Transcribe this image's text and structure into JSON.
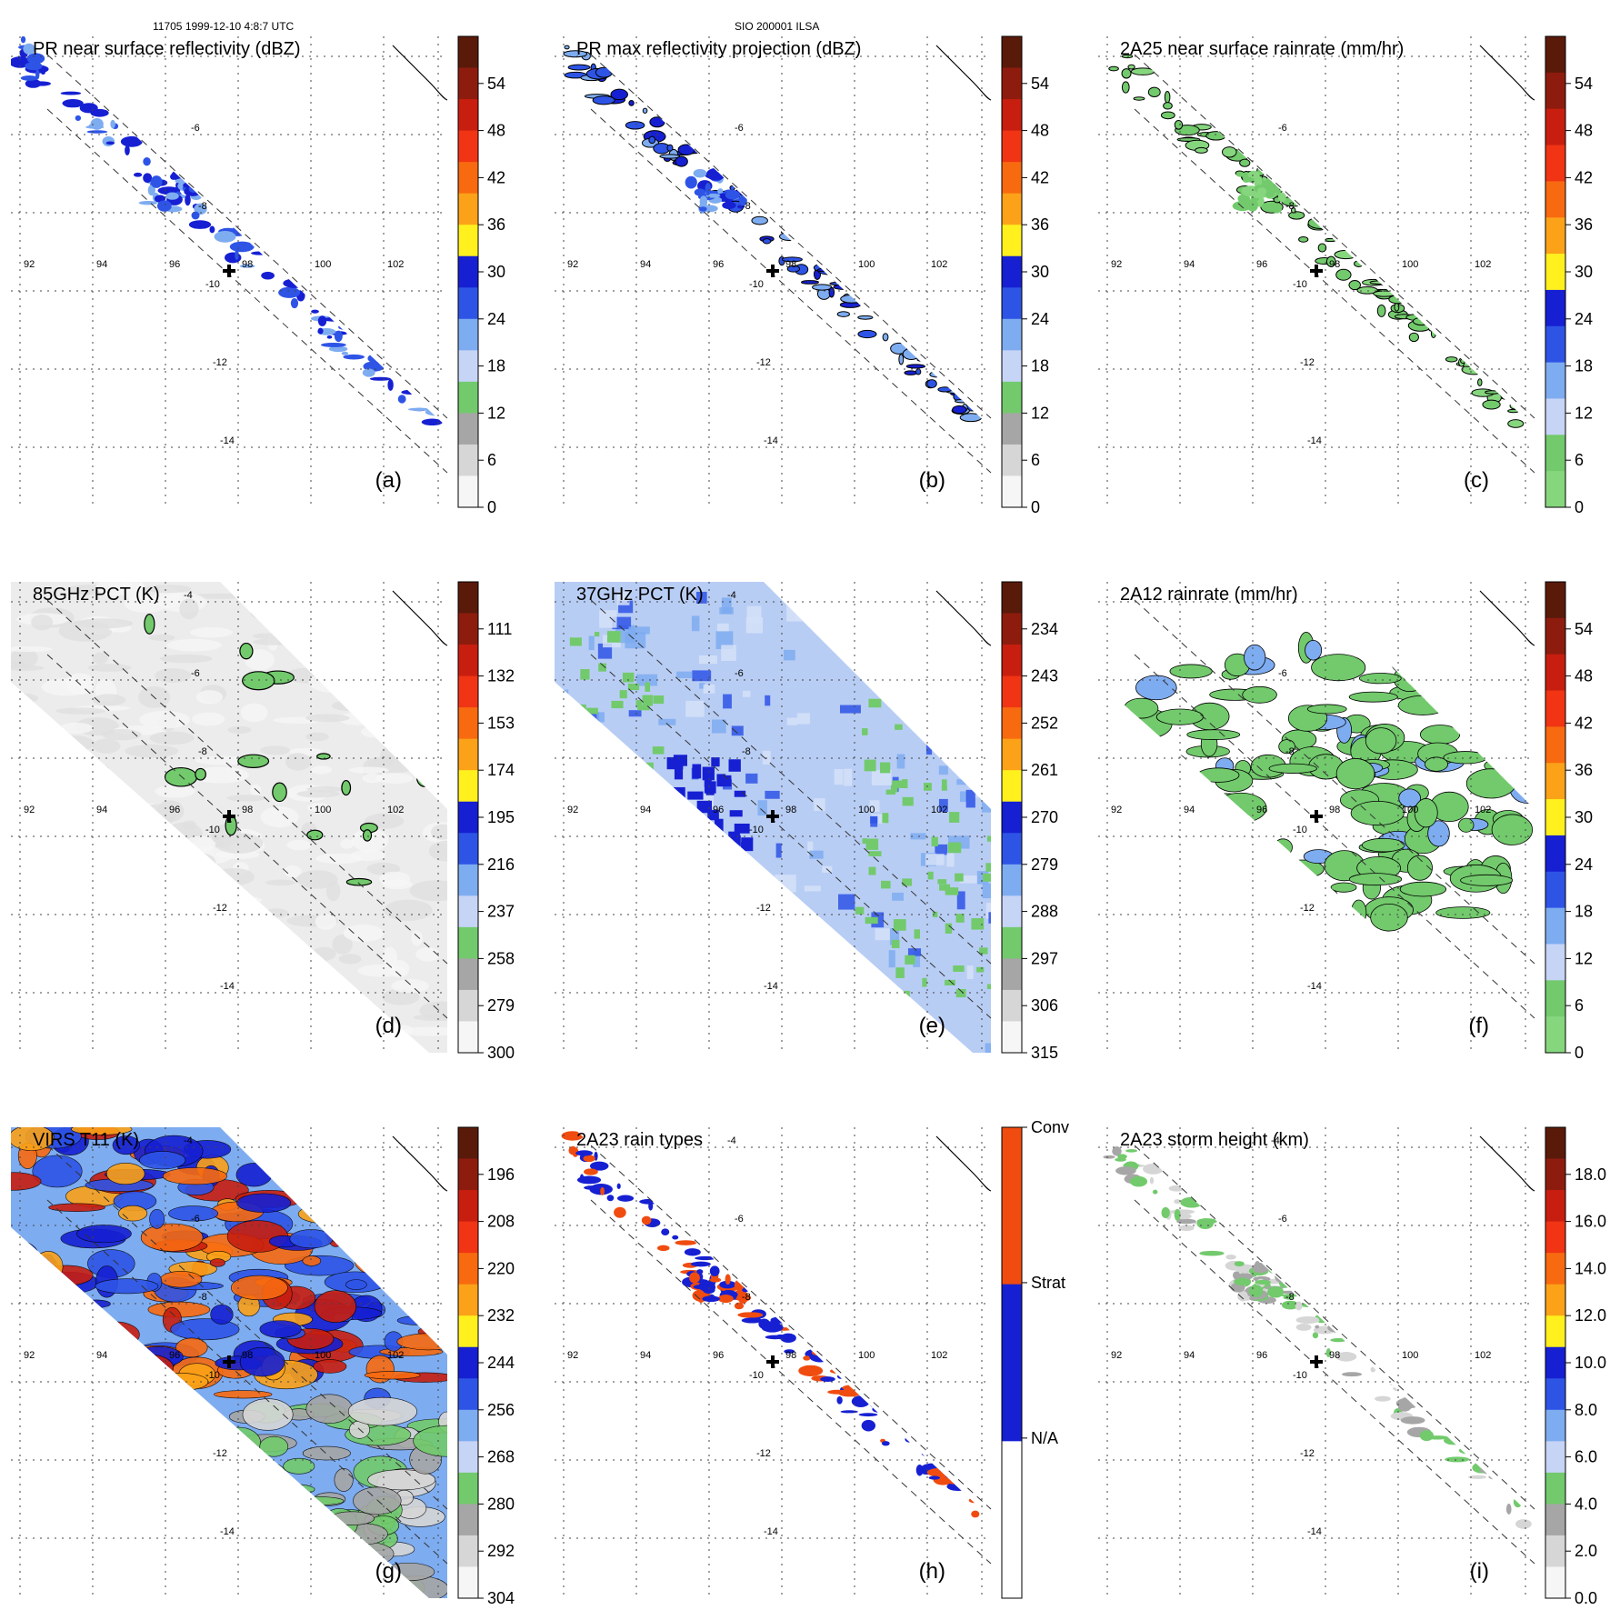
{
  "header": {
    "left": "11705 1999-12-10 4:8:7 UTC",
    "center": "SIO 200001 ILSA"
  },
  "map": {
    "lon_labels": [
      "92",
      "94",
      "96",
      "98",
      "100",
      "102"
    ],
    "storm_center_icon": "plus-marker-icon",
    "coastline_color": "#000000",
    "gridline_style": "dotted"
  },
  "panels": [
    {
      "id": "a",
      "letter": "(a)",
      "title": "PR near surface reflectivity (dBZ)",
      "lat_labels": [
        "-6",
        "-8",
        "-10",
        "-12",
        "-14"
      ],
      "colorbar": {
        "ticks": [
          "54",
          "48",
          "42",
          "36",
          "30",
          "24",
          "18",
          "12",
          "6",
          "0"
        ],
        "colors": [
          "#5a1a0a",
          "#8e1c0e",
          "#c81e10",
          "#f03414",
          "#f86a10",
          "#fba218",
          "#fff01e",
          "#1620d2",
          "#2e54e6",
          "#7eacf0",
          "#c6d4f6",
          "#72ca6c",
          "#a6a6a6",
          "#d6d6d6",
          "#f6f6f6"
        ]
      },
      "mask": "swath-narrow",
      "fill": "sparse-pr"
    },
    {
      "id": "b",
      "letter": "(b)",
      "title": "PR max reflectivity projection (dBZ)",
      "lat_labels": [
        "-6",
        "-8",
        "-10",
        "-12",
        "-14"
      ],
      "colorbar": {
        "ticks": [
          "54",
          "48",
          "42",
          "36",
          "30",
          "24",
          "18",
          "12",
          "6",
          "0"
        ],
        "colors": [
          "#5a1a0a",
          "#8e1c0e",
          "#c81e10",
          "#f03414",
          "#f86a10",
          "#fba218",
          "#fff01e",
          "#1620d2",
          "#2e54e6",
          "#7eacf0",
          "#c6d4f6",
          "#72ca6c",
          "#a6a6a6",
          "#d6d6d6",
          "#f6f6f6"
        ]
      },
      "mask": "swath-narrow",
      "fill": "sparse-pr-contour"
    },
    {
      "id": "c",
      "letter": "(c)",
      "title": "2A25 near surface rainrate (mm/hr)",
      "lat_labels": [
        "-6",
        "-8",
        "-10",
        "-12",
        "-14"
      ],
      "colorbar": {
        "ticks": [
          "54",
          "48",
          "42",
          "36",
          "30",
          "24",
          "18",
          "12",
          "6",
          "0"
        ],
        "colors": [
          "#5a1a0a",
          "#8e1c0e",
          "#c81e10",
          "#f03414",
          "#f86a10",
          "#fba218",
          "#fff01e",
          "#1620d2",
          "#2e54e6",
          "#7eacf0",
          "#c6d4f6",
          "#72ca6c",
          "#86d67e"
        ]
      },
      "mask": "swath-narrow",
      "fill": "sparse-rain"
    },
    {
      "id": "d",
      "letter": "(d)",
      "title": "85GHz PCT (K)",
      "lat_labels": [
        "-4",
        "-6",
        "-8",
        "-10",
        "-12",
        "-14"
      ],
      "colorbar": {
        "ticks": [
          "111",
          "132",
          "153",
          "174",
          "195",
          "216",
          "237",
          "258",
          "279",
          "300"
        ],
        "colors": [
          "#5a1a0a",
          "#8e1c0e",
          "#c81e10",
          "#f03414",
          "#f86a10",
          "#fba218",
          "#fff01e",
          "#1620d2",
          "#2e54e6",
          "#7eacf0",
          "#c6d4f6",
          "#72ca6c",
          "#a6a6a6",
          "#d6d6d6",
          "#f6f6f6"
        ]
      },
      "mask": "swath-wide",
      "fill": "gray-pct"
    },
    {
      "id": "e",
      "letter": "(e)",
      "title": "37GHz PCT (K)",
      "lat_labels": [
        "-4",
        "-6",
        "-8",
        "-10",
        "-12",
        "-14"
      ],
      "colorbar": {
        "ticks": [
          "234",
          "243",
          "252",
          "261",
          "270",
          "279",
          "288",
          "297",
          "306",
          "315"
        ],
        "colors": [
          "#5a1a0a",
          "#8e1c0e",
          "#c81e10",
          "#f03414",
          "#f86a10",
          "#fba218",
          "#fff01e",
          "#1620d2",
          "#2e54e6",
          "#7eacf0",
          "#c6d4f6",
          "#72ca6c",
          "#a6a6a6",
          "#d6d6d6",
          "#f6f6f6"
        ]
      },
      "mask": "swath-wide",
      "fill": "blue-pct"
    },
    {
      "id": "f",
      "letter": "(f)",
      "title": "2A12 rainrate (mm/hr)",
      "lat_labels": [
        "-6",
        "-8",
        "-10",
        "-12",
        "-14"
      ],
      "colorbar": {
        "ticks": [
          "54",
          "48",
          "42",
          "36",
          "30",
          "24",
          "18",
          "12",
          "6",
          "0"
        ],
        "colors": [
          "#5a1a0a",
          "#8e1c0e",
          "#c81e10",
          "#f03414",
          "#f86a10",
          "#fba218",
          "#fff01e",
          "#1620d2",
          "#2e54e6",
          "#7eacf0",
          "#c6d4f6",
          "#72ca6c",
          "#86d67e"
        ]
      },
      "mask": "swath-wide",
      "fill": "rain-spiral"
    },
    {
      "id": "g",
      "letter": "(g)",
      "title": "VIRS T11 (K)",
      "lat_labels": [
        "-4",
        "-6",
        "-8",
        "-10",
        "-12",
        "-14"
      ],
      "colorbar": {
        "ticks": [
          "196",
          "208",
          "220",
          "232",
          "244",
          "256",
          "268",
          "280",
          "292",
          "304"
        ],
        "colors": [
          "#5a1a0a",
          "#8e1c0e",
          "#c81e10",
          "#f03414",
          "#f86a10",
          "#fba218",
          "#fff01e",
          "#1620d2",
          "#2e54e6",
          "#7eacf0",
          "#c6d4f6",
          "#72ca6c",
          "#a6a6a6",
          "#d6d6d6",
          "#f6f6f6"
        ]
      },
      "mask": "swath-wide",
      "fill": "ir-virs"
    },
    {
      "id": "h",
      "letter": "(h)",
      "title": "2A23 rain types",
      "lat_labels": [
        "-4",
        "-6",
        "-8",
        "-10",
        "-12",
        "-14"
      ],
      "colorbar": {
        "ticks": [
          "Conv",
          "Strat",
          "N/A"
        ],
        "colors": [
          "#f04c10",
          "#1620d2",
          "#ffffff"
        ]
      },
      "mask": "swath-narrow",
      "fill": "rain-types"
    },
    {
      "id": "i",
      "letter": "(i)",
      "title": "2A23 storm height (km)",
      "lat_labels": [
        "-4",
        "-6",
        "-8",
        "-10",
        "-12",
        "-14"
      ],
      "colorbar": {
        "ticks": [
          "18.0",
          "16.0",
          "14.0",
          "12.0",
          "10.0",
          "8.0",
          "6.0",
          "4.0",
          "2.0",
          "0.0"
        ],
        "colors": [
          "#5a1a0a",
          "#8e1c0e",
          "#c81e10",
          "#f03414",
          "#f86a10",
          "#fba218",
          "#fff01e",
          "#1620d2",
          "#2e54e6",
          "#7eacf0",
          "#c6d4f6",
          "#72ca6c",
          "#a6a6a6",
          "#d6d6d6",
          "#f6f6f6"
        ]
      },
      "mask": "swath-narrow",
      "fill": "storm-height"
    }
  ]
}
